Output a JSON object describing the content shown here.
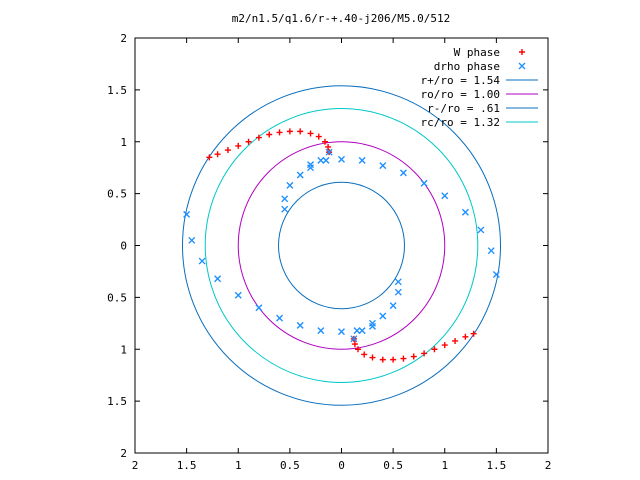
{
  "chart_data": {
    "type": "scatter",
    "title": "m2/n1.5/q1.6/r-+.40-j206/M5.0/512",
    "xlabel": "",
    "ylabel": "",
    "xlim": [
      -2,
      2
    ],
    "ylim": [
      -2,
      2
    ],
    "grid": false,
    "legend_position": "top-right",
    "x_ticks": [
      -2,
      -1.5,
      -1,
      -0.5,
      0,
      0.5,
      1,
      1.5,
      2
    ],
    "y_ticks": [
      -2,
      -1.5,
      -1,
      -0.5,
      0,
      0.5,
      1,
      1.5,
      2
    ],
    "x_tick_labels": [
      "2",
      "1.5",
      "1",
      "0.5",
      "0",
      "0.5",
      "1",
      "1.5",
      "2"
    ],
    "y_tick_labels": [
      "2",
      "1.5",
      "1",
      "0.5",
      "0",
      "0.5",
      "1",
      "1.5",
      "2"
    ],
    "series": [
      {
        "name": "W phase",
        "marker": "+",
        "color": "#ff0000",
        "points": [
          [
            -1.28,
            0.85
          ],
          [
            -1.2,
            0.88
          ],
          [
            -1.1,
            0.92
          ],
          [
            -1.0,
            0.96
          ],
          [
            -0.9,
            1.0
          ],
          [
            -0.8,
            1.04
          ],
          [
            -0.7,
            1.07
          ],
          [
            -0.6,
            1.09
          ],
          [
            -0.5,
            1.1
          ],
          [
            -0.4,
            1.1
          ],
          [
            -0.3,
            1.08
          ],
          [
            -0.22,
            1.05
          ],
          [
            -0.16,
            1.0
          ],
          [
            -0.13,
            0.95
          ],
          [
            -0.12,
            0.9
          ],
          [
            1.28,
            -0.85
          ],
          [
            1.2,
            -0.88
          ],
          [
            1.1,
            -0.92
          ],
          [
            1.0,
            -0.96
          ],
          [
            0.9,
            -1.0
          ],
          [
            0.8,
            -1.04
          ],
          [
            0.7,
            -1.07
          ],
          [
            0.6,
            -1.09
          ],
          [
            0.5,
            -1.1
          ],
          [
            0.4,
            -1.1
          ],
          [
            0.3,
            -1.08
          ],
          [
            0.22,
            -1.05
          ],
          [
            0.16,
            -1.0
          ],
          [
            0.13,
            -0.95
          ],
          [
            0.12,
            -0.9
          ]
        ]
      },
      {
        "name": "drho phase",
        "marker": "x",
        "color": "#1e90ff",
        "points": [
          [
            -0.12,
            0.9
          ],
          [
            -0.2,
            0.82
          ],
          [
            -0.3,
            0.75
          ],
          [
            -0.4,
            0.68
          ],
          [
            -0.5,
            0.58
          ],
          [
            -0.55,
            0.45
          ],
          [
            -0.55,
            0.35
          ],
          [
            -0.3,
            0.78
          ],
          [
            -0.15,
            0.82
          ],
          [
            0.0,
            0.83
          ],
          [
            0.2,
            0.82
          ],
          [
            0.4,
            0.77
          ],
          [
            0.6,
            0.7
          ],
          [
            0.8,
            0.6
          ],
          [
            1.0,
            0.48
          ],
          [
            1.2,
            0.32
          ],
          [
            1.35,
            0.15
          ],
          [
            1.45,
            -0.05
          ],
          [
            1.5,
            -0.28
          ],
          [
            0.12,
            -0.9
          ],
          [
            0.2,
            -0.82
          ],
          [
            0.3,
            -0.75
          ],
          [
            0.4,
            -0.68
          ],
          [
            0.5,
            -0.58
          ],
          [
            0.55,
            -0.45
          ],
          [
            0.55,
            -0.35
          ],
          [
            0.3,
            -0.78
          ],
          [
            0.15,
            -0.82
          ],
          [
            0.0,
            -0.83
          ],
          [
            -0.2,
            -0.82
          ],
          [
            -0.4,
            -0.77
          ],
          [
            -0.6,
            -0.7
          ],
          [
            -0.8,
            -0.6
          ],
          [
            -1.0,
            -0.48
          ],
          [
            -1.2,
            -0.32
          ],
          [
            -1.35,
            -0.15
          ],
          [
            -1.45,
            0.05
          ],
          [
            -1.5,
            0.3
          ]
        ]
      }
    ],
    "circles": [
      {
        "name": "r+/ro = 1.54",
        "radius": 1.54,
        "color": "#0a6ebd"
      },
      {
        "name": "ro/ro = 1.00",
        "radius": 1.0,
        "color": "#b000c0"
      },
      {
        "name": "r-/ro = .61",
        "radius": 0.61,
        "color": "#0a6ebd"
      },
      {
        "name": "rc/ro = 1.32",
        "radius": 1.32,
        "color": "#00c8c8"
      }
    ]
  }
}
